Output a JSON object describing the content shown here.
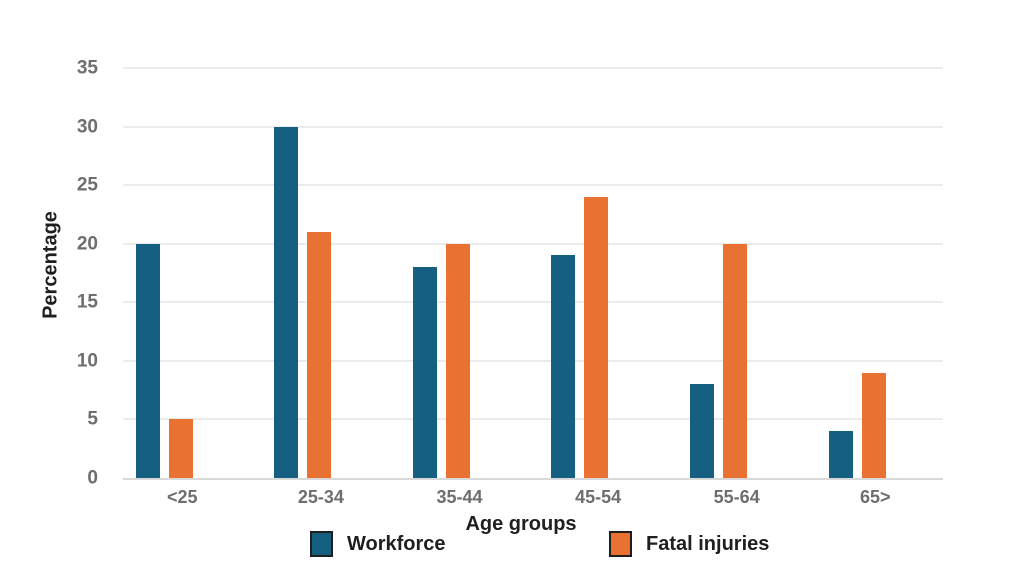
{
  "chart_data": {
    "type": "bar",
    "categories": [
      "<25",
      "25-34",
      "35-44",
      "45-54",
      "55-64",
      "65>"
    ],
    "series": [
      {
        "name": "Workforce",
        "color": "#156082",
        "values": [
          20,
          30,
          18,
          19,
          8,
          4
        ]
      },
      {
        "name": "Fatal injuries",
        "color": "#E97132",
        "values": [
          5,
          21,
          20,
          24,
          20,
          9
        ]
      }
    ],
    "xlabel": "Age groups",
    "ylabel": "Percentage",
    "ylim": [
      0,
      35
    ],
    "yticks": [
      0,
      5,
      10,
      15,
      20,
      25,
      30,
      35
    ],
    "grid": true,
    "legend_position": "bottom",
    "colors": {
      "grid": "#ebebeb",
      "axis_line": "#d9d9d9",
      "tick_label": "#6e6e6e",
      "text": "#1f1f1f",
      "background": "#ffffff"
    }
  }
}
